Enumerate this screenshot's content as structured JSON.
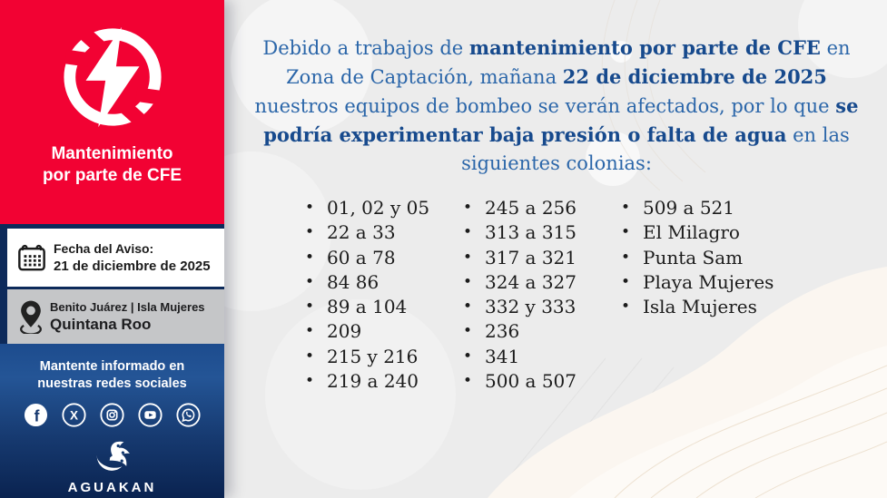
{
  "sidebar": {
    "alert": {
      "icon": "power-outage-icon",
      "title_line1": "Mantenimiento",
      "title_line2": "por parte de CFE"
    },
    "notice_date": {
      "icon": "calendar-icon",
      "label": "Fecha del Aviso:",
      "value": "21 de diciembre de 2025"
    },
    "location": {
      "icon": "location-pin-icon",
      "line1": "Benito Juárez | Isla Mujeres",
      "line2": "Quintana Roo"
    },
    "social": {
      "heading_line1": "Mantente informado en",
      "heading_line2": "nuestras redes sociales",
      "icons": [
        "facebook-icon",
        "x-twitter-icon",
        "instagram-icon",
        "youtube-icon",
        "whatsapp-icon"
      ]
    },
    "brand": {
      "logo": "aguakan-wave-logo",
      "name": "AGUAKAN"
    }
  },
  "announcement": {
    "segments": [
      {
        "text": "Debido a trabajos de ",
        "bold": false
      },
      {
        "text": "mantenimiento por parte de CFE",
        "bold": true
      },
      {
        "text": " en Zona de Captación, mañana ",
        "bold": false
      },
      {
        "text": "22 de diciembre de 2025",
        "bold": true
      },
      {
        "text": " nuestros equipos de bombeo se verán afectados, por lo que ",
        "bold": false
      },
      {
        "text": "se podría experimentar baja presión o falta de agua",
        "bold": true
      },
      {
        "text": " en las siguientes colonias:",
        "bold": false
      }
    ]
  },
  "colonias": {
    "columns": [
      {
        "items": [
          "01, 02 y 05",
          "22 a 33",
          "60 a 78",
          "84 86",
          "89 a 104",
          "209",
          "215 y 216",
          "219 a 240"
        ]
      },
      {
        "items": [
          "245 a 256",
          "313 a 315",
          "317 a 321",
          "324 a 327",
          "332 y 333",
          "236",
          "341",
          "500 a 507"
        ]
      },
      {
        "items": [
          "509 a 521",
          "El Milagro",
          "Punta Sam",
          "Playa Mujeres",
          "Isla Mujeres"
        ]
      }
    ]
  },
  "colors": {
    "alert_red": "#f20233",
    "sidebar_navy": "#0d2a5a",
    "social_blue_top": "#1d4c8e",
    "social_blue_bottom": "#0a2350",
    "location_gray": "#c5c6c8",
    "content_background": "#ececec",
    "content_wave_cream": "#fbf6f0",
    "announcement_blue": "#2b66a9",
    "announcement_bold_blue": "#174a8d",
    "list_text": "#1c1c1c"
  }
}
